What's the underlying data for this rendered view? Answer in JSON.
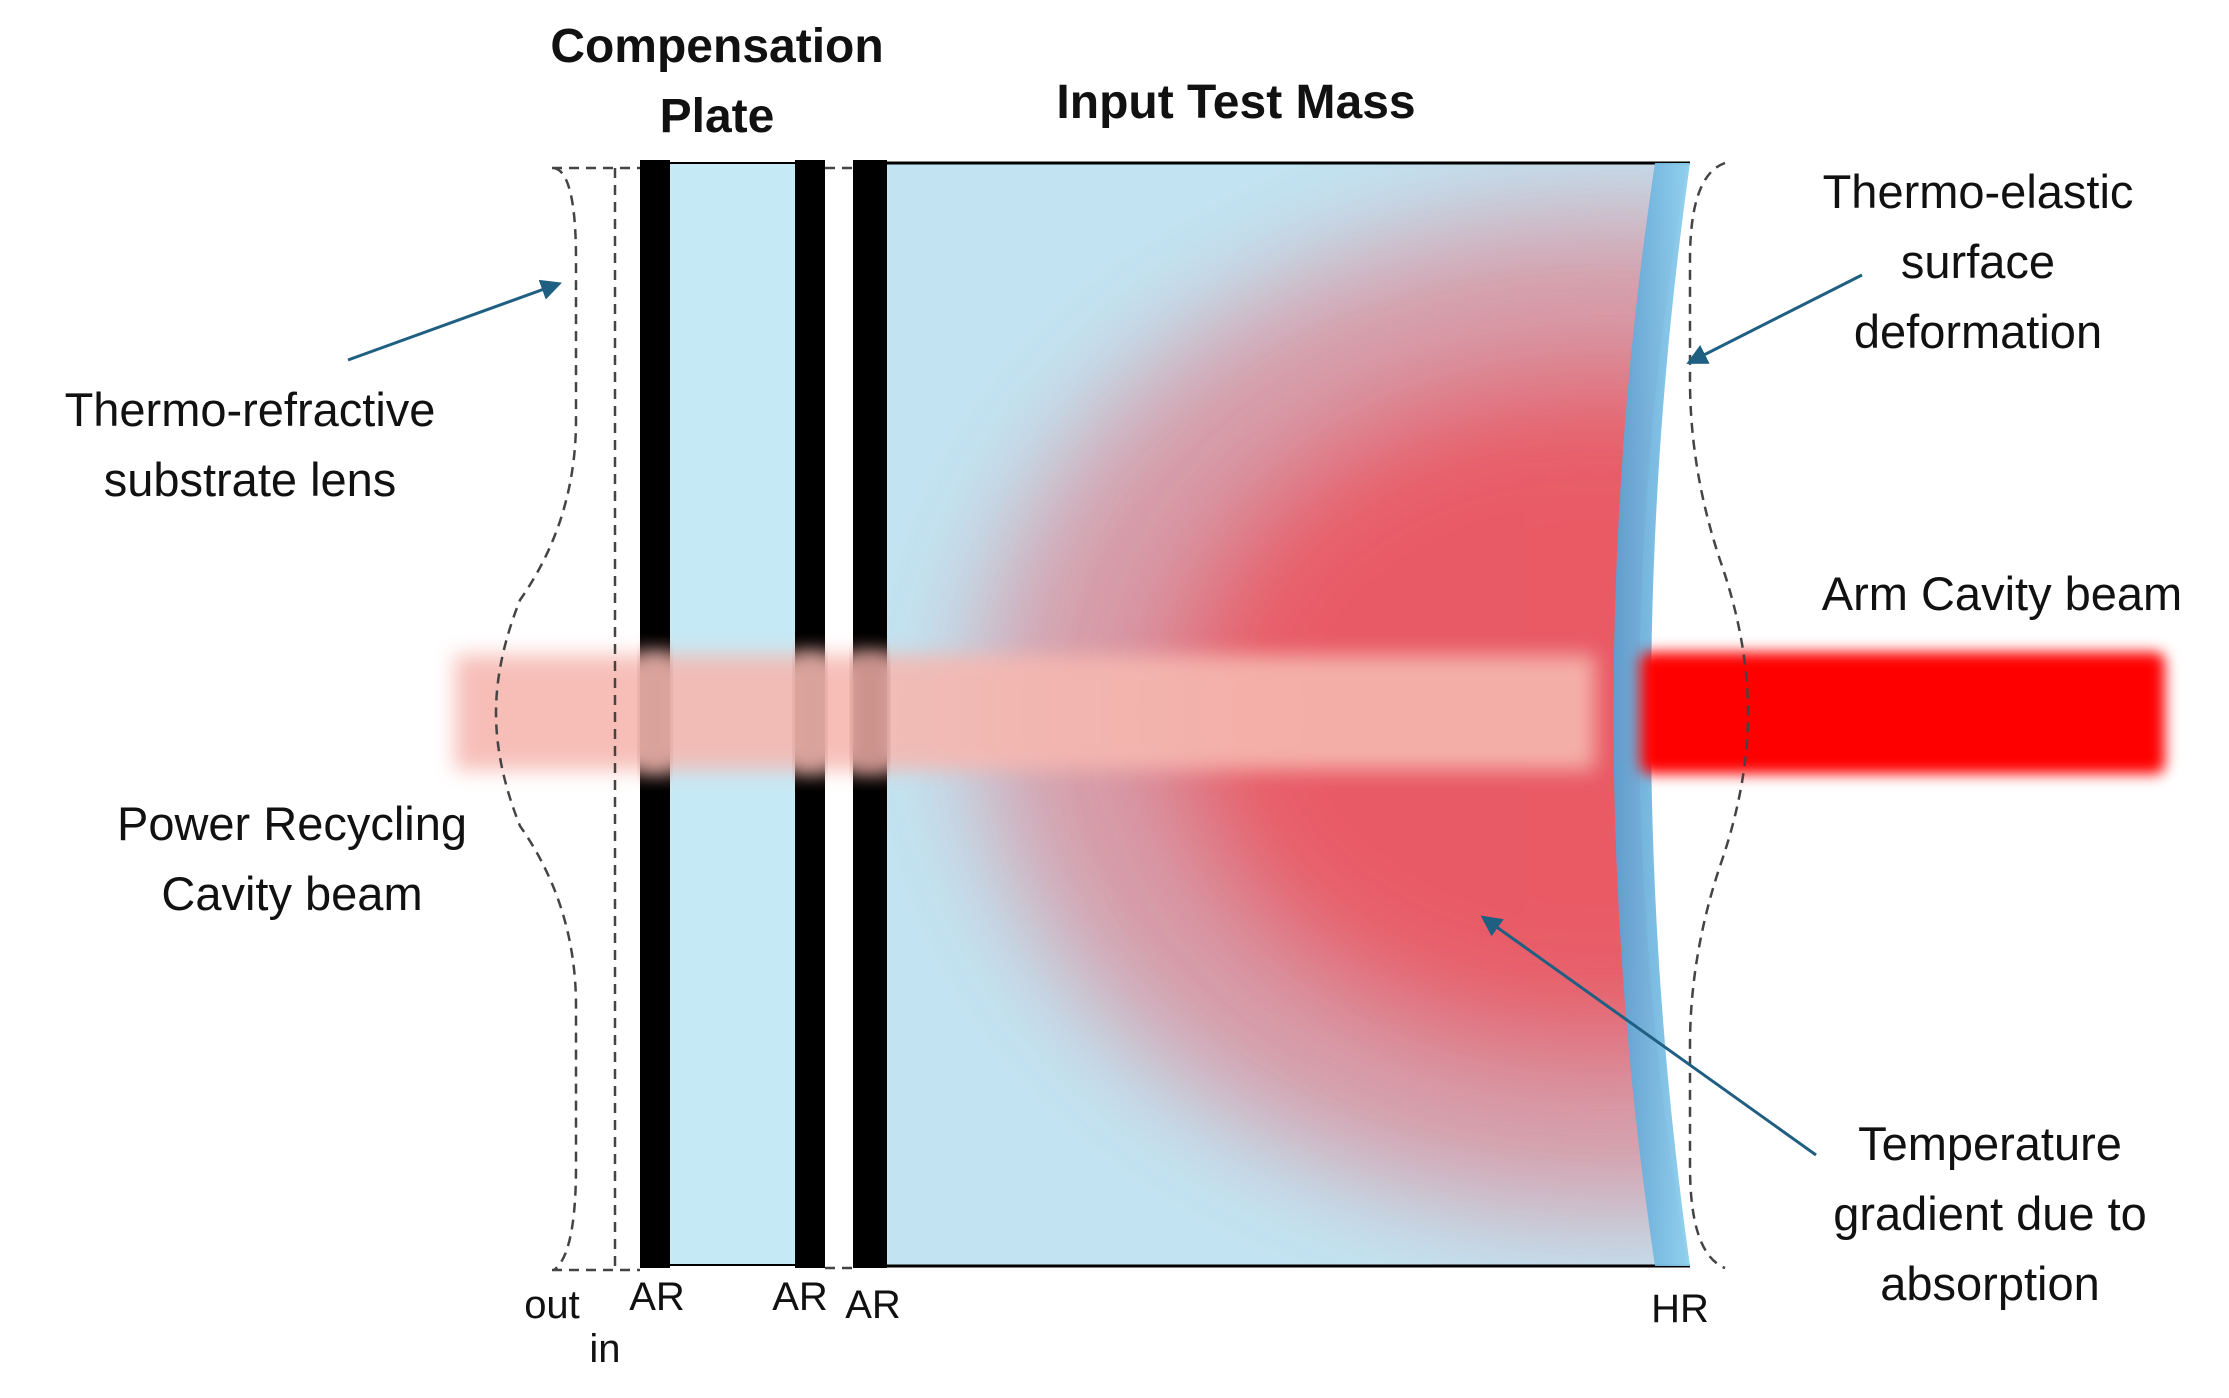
{
  "titles": {
    "cp_line1": "Compensation",
    "cp_line2": "Plate",
    "itm": "Input Test Mass"
  },
  "annotations": {
    "thermo_refractive_line1": "Thermo-refractive",
    "thermo_refractive_line2": "substrate lens",
    "thermo_elastic_line1": "Thermo-elastic",
    "thermo_elastic_line2": "surface",
    "thermo_elastic_line3": "deformation",
    "arm_beam": "Arm Cavity beam",
    "prc_line1": "Power Recycling",
    "prc_line2": "Cavity beam",
    "temp_line1": "Temperature",
    "temp_line2": "gradient due to",
    "temp_line3": "absorption"
  },
  "surface_labels": {
    "out": "out",
    "in": "in",
    "ar1": "AR",
    "ar2": "AR",
    "ar3": "AR",
    "hr": "HR"
  },
  "colors": {
    "substrate": "#c6e9f6",
    "itm_substrate": "#c2e4f2",
    "coating": "#000000",
    "hr_coating": "#7ec4e6",
    "arm_beam": "#ff0000",
    "prc_beam": "#f6b8b0",
    "heat": "#ef4550",
    "arrow": "#1f5f82",
    "dashed": "#444444"
  }
}
